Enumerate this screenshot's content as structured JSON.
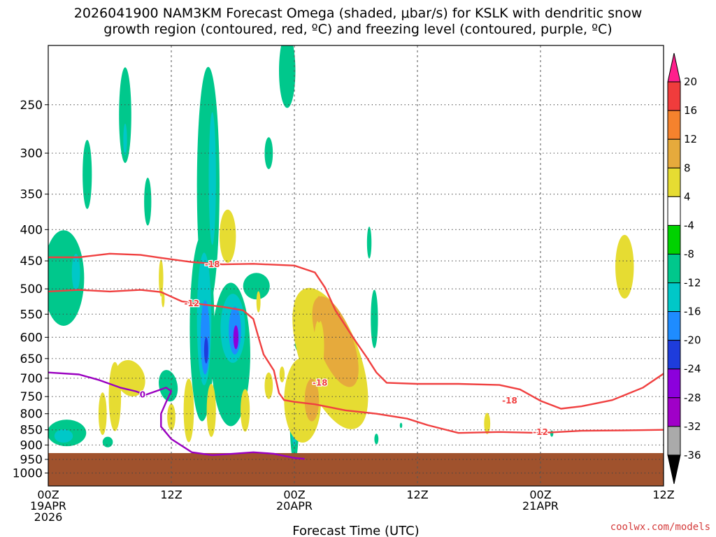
{
  "chart_data": {
    "type": "contour",
    "title_line1": "2026041900 NAM3KM Forecast Omega (shaded, μbar/s) for KSLK with dendritic snow",
    "title_line2": "growth region (contoured, red, ºC) and freezing level (contoured, purple, ºC)",
    "xlabel": "Forecast Time (UTC)",
    "ylabel": "",
    "x_range_hours": [
      0,
      60
    ],
    "y_axis": {
      "scale": "log-pressure",
      "units": "hPa",
      "range": [
        1050,
        200
      ]
    },
    "y_ticks": [
      "250",
      "300",
      "350",
      "400",
      "450",
      "500",
      "550",
      "600",
      "650",
      "700",
      "750",
      "800",
      "850",
      "900",
      "950",
      "1000"
    ],
    "x_ticks": [
      {
        "hour": 0,
        "line1": "00Z",
        "line2": "19APR",
        "line3": "2026"
      },
      {
        "hour": 12,
        "line1": "12Z",
        "line2": "",
        "line3": ""
      },
      {
        "hour": 24,
        "line1": "00Z",
        "line2": "20APR",
        "line3": ""
      },
      {
        "hour": 36,
        "line1": "12Z",
        "line2": "",
        "line3": ""
      },
      {
        "hour": 48,
        "line1": "00Z",
        "line2": "21APR",
        "line3": ""
      },
      {
        "hour": 60,
        "line1": "12Z",
        "line2": "",
        "line3": ""
      }
    ],
    "colorbar": {
      "labels": [
        "20",
        "16",
        "12",
        "8",
        "4",
        "-4",
        "-8",
        "-12",
        "-16",
        "-20",
        "-24",
        "-28",
        "-32",
        "-36"
      ],
      "colors": [
        "#ff1e8c",
        "#f03c3c",
        "#f5822d",
        "#e6aa3c",
        "#e6dc32",
        "#ffffff",
        "#00d200",
        "#00c88c",
        "#00c8c8",
        "#1e8cff",
        "#1e3cdc",
        "#8c00dc",
        "#a000c8",
        "#aaaaaa",
        "#000000"
      ]
    },
    "surface_color": "#a0522d",
    "isotherms": [
      {
        "label": "-18",
        "color": "#f04040",
        "points": [
          [
            0,
            444
          ],
          [
            3,
            444
          ],
          [
            6,
            438
          ],
          [
            9,
            440
          ],
          [
            11,
            445
          ],
          [
            14,
            452
          ],
          [
            17,
            456
          ],
          [
            20,
            455
          ],
          [
            24,
            458
          ],
          [
            26,
            470
          ],
          [
            27,
            498
          ],
          [
            28,
            542
          ],
          [
            29,
            575
          ],
          [
            30,
            610
          ],
          [
            31,
            645
          ],
          [
            32,
            685
          ],
          [
            33,
            712
          ],
          [
            36,
            715
          ],
          [
            40,
            715
          ],
          [
            44,
            718
          ],
          [
            46,
            730
          ],
          [
            48,
            762
          ],
          [
            50,
            785
          ],
          [
            52,
            778
          ],
          [
            55,
            760
          ],
          [
            58,
            725
          ],
          [
            60,
            688
          ]
        ]
      },
      {
        "label": "-12",
        "color": "#f04040",
        "points": [
          [
            0,
            505
          ],
          [
            3,
            502
          ],
          [
            6,
            505
          ],
          [
            9,
            502
          ],
          [
            11,
            506
          ],
          [
            13,
            524
          ],
          [
            15,
            530
          ],
          [
            17,
            535
          ],
          [
            19,
            542
          ],
          [
            20,
            560
          ],
          [
            20.5,
            600
          ],
          [
            21,
            640
          ],
          [
            22,
            680
          ],
          [
            22.5,
            740
          ],
          [
            23,
            760
          ],
          [
            24,
            765
          ],
          [
            26,
            772
          ],
          [
            29,
            790
          ],
          [
            32,
            800
          ],
          [
            35,
            815
          ],
          [
            37,
            835
          ],
          [
            40,
            860
          ],
          [
            44,
            857
          ],
          [
            48,
            860
          ],
          [
            52,
            853
          ],
          [
            56,
            852
          ],
          [
            60,
            850
          ]
        ]
      }
    ],
    "freezing_level": {
      "label": "0",
      "color": "#9a00c0",
      "points": [
        [
          0,
          685
        ],
        [
          3,
          690
        ],
        [
          5,
          705
        ],
        [
          7,
          725
        ],
        [
          8.5,
          735
        ],
        [
          9.5,
          745
        ],
        [
          10.5,
          735
        ],
        [
          11.5,
          725
        ],
        [
          12,
          735
        ],
        [
          11.5,
          765
        ],
        [
          11,
          800
        ],
        [
          11,
          840
        ],
        [
          12,
          880
        ],
        [
          14,
          925
        ],
        [
          16,
          935
        ],
        [
          18,
          930
        ],
        [
          20,
          925
        ],
        [
          22,
          930
        ],
        [
          24,
          945
        ],
        [
          25,
          948
        ]
      ]
    },
    "isotherm_labels": [
      {
        "text": "-18",
        "x": 16,
        "p": 456
      },
      {
        "text": "-12",
        "x": 14,
        "p": 528
      },
      {
        "text": "-18",
        "x": 26.5,
        "p": 712
      },
      {
        "text": "-18",
        "x": 45,
        "p": 762
      },
      {
        "text": "-12",
        "x": 48,
        "p": 857
      },
      {
        "text": "0",
        "x": 9.2,
        "p": 745
      }
    ],
    "omega_shaded": [
      {
        "l": 2,
        "x": 3.8,
        "p": 325,
        "rx": 0.45,
        "ry": 0.13,
        "rot": 0
      },
      {
        "l": 2,
        "x": 7.5,
        "p": 260,
        "rx": 0.6,
        "ry": 0.18,
        "rot": 0
      },
      {
        "l": 2,
        "x": 9.7,
        "p": 360,
        "rx": 0.35,
        "ry": 0.09,
        "rot": 0
      },
      {
        "l": 3,
        "x": 7.5,
        "p": 285,
        "rx": 0.18,
        "ry": 0.06,
        "rot": 0
      },
      {
        "l": 2,
        "x": 1.5,
        "p": 480,
        "rx": 2.0,
        "ry": 0.18,
        "rot": 0
      },
      {
        "l": 3,
        "x": 2.7,
        "p": 470,
        "rx": 0.4,
        "ry": 0.07,
        "rot": 0
      },
      {
        "l": 2,
        "x": 1.8,
        "p": 860,
        "rx": 1.9,
        "ry": 0.05,
        "rot": 0
      },
      {
        "l": 3,
        "x": 1.5,
        "p": 870,
        "rx": 0.9,
        "ry": 0.025,
        "rot": 0
      },
      {
        "l": 2,
        "x": 5.8,
        "p": 890,
        "rx": 0.5,
        "ry": 0.02,
        "rot": 0
      },
      {
        "l": 2,
        "x": 11.7,
        "p": 720,
        "rx": 0.9,
        "ry": 0.06,
        "rot": -10
      },
      {
        "l": 2,
        "x": 15.6,
        "p": 340,
        "rx": 1.1,
        "ry": 0.45,
        "rot": 0
      },
      {
        "l": 3,
        "x": 16.0,
        "p": 330,
        "rx": 0.35,
        "ry": 0.25,
        "rot": 0
      },
      {
        "l": 2,
        "x": 15.0,
        "p": 580,
        "rx": 1.2,
        "ry": 0.35,
        "rot": 0
      },
      {
        "l": 3,
        "x": 15.2,
        "p": 560,
        "rx": 0.7,
        "ry": 0.25,
        "rot": 0
      },
      {
        "l": 4,
        "x": 15.3,
        "p": 600,
        "rx": 0.45,
        "ry": 0.14,
        "rot": 0
      },
      {
        "l": 5,
        "x": 15.4,
        "p": 630,
        "rx": 0.2,
        "ry": 0.05,
        "rot": 0
      },
      {
        "l": 2,
        "x": 17.8,
        "p": 640,
        "rx": 1.9,
        "ry": 0.27,
        "rot": 0
      },
      {
        "l": 3,
        "x": 18.0,
        "p": 580,
        "rx": 1.2,
        "ry": 0.13,
        "rot": 0
      },
      {
        "l": 4,
        "x": 18.2,
        "p": 585,
        "rx": 0.6,
        "ry": 0.09,
        "rot": 0
      },
      {
        "l": 6,
        "x": 18.3,
        "p": 600,
        "rx": 0.25,
        "ry": 0.045,
        "rot": 0
      },
      {
        "l": 2,
        "x": 20.3,
        "p": 495,
        "rx": 1.3,
        "ry": 0.05,
        "rot": 0
      },
      {
        "l": 2,
        "x": 23.3,
        "p": 220,
        "rx": 0.8,
        "ry": 0.14,
        "rot": 0
      },
      {
        "l": 2,
        "x": 21.5,
        "p": 300,
        "rx": 0.4,
        "ry": 0.06,
        "rot": 0
      },
      {
        "l": 2,
        "x": 24.0,
        "p": 810,
        "rx": 0.45,
        "ry": 0.17,
        "rot": 0
      },
      {
        "l": 3,
        "x": 24.0,
        "p": 800,
        "rx": 0.35,
        "ry": 0.12,
        "rot": 0
      },
      {
        "l": 4,
        "x": 24.0,
        "p": 800,
        "rx": 0.25,
        "ry": 0.09,
        "rot": 0
      },
      {
        "l": 6,
        "x": 24.0,
        "p": 800,
        "rx": 0.15,
        "ry": 0.07,
        "rot": 0
      },
      {
        "l": 2,
        "x": 31.8,
        "p": 560,
        "rx": 0.35,
        "ry": 0.11,
        "rot": 0
      },
      {
        "l": 2,
        "x": 31.3,
        "p": 420,
        "rx": 0.22,
        "ry": 0.06,
        "rot": 0
      },
      {
        "l": 2,
        "x": 24.5,
        "p": 615,
        "rx": 0.45,
        "ry": 0.03,
        "rot": 0
      },
      {
        "l": 2,
        "x": 32.0,
        "p": 880,
        "rx": 0.2,
        "ry": 0.02,
        "rot": 0
      },
      {
        "l": 2,
        "x": 34.4,
        "p": 836,
        "rx": 0.12,
        "ry": 0.01,
        "rot": 0
      },
      {
        "l": 2,
        "x": 49.1,
        "p": 862,
        "rx": 0.15,
        "ry": 0.012,
        "rot": 0
      },
      {
        "l": -1,
        "x": 27.5,
        "p": 650,
        "rx": 2.9,
        "ry": 0.28,
        "rot": -20
      },
      {
        "l": -2,
        "x": 28.0,
        "p": 610,
        "rx": 1.7,
        "ry": 0.18,
        "rot": -20
      },
      {
        "l": -1,
        "x": 24.8,
        "p": 760,
        "rx": 1.8,
        "ry": 0.16,
        "rot": 0
      },
      {
        "l": -2,
        "x": 25.7,
        "p": 760,
        "rx": 0.7,
        "ry": 0.08,
        "rot": 0
      },
      {
        "l": -1,
        "x": 26.4,
        "p": 620,
        "rx": 0.5,
        "ry": 0.1,
        "rot": 0
      },
      {
        "l": -2,
        "x": 26.4,
        "p": 540,
        "rx": 0.3,
        "ry": 0.05,
        "rot": 0
      },
      {
        "l": -1,
        "x": 17.5,
        "p": 410,
        "rx": 0.8,
        "ry": 0.1,
        "rot": 0
      },
      {
        "l": -1,
        "x": 11.0,
        "p": 480,
        "rx": 0.22,
        "ry": 0.07,
        "rot": 0
      },
      {
        "l": -1,
        "x": 6.5,
        "p": 750,
        "rx": 0.6,
        "ry": 0.13,
        "rot": 0
      },
      {
        "l": -1,
        "x": 8.0,
        "p": 700,
        "rx": 1.4,
        "ry": 0.07,
        "rot": -20
      },
      {
        "l": -1,
        "x": 5.3,
        "p": 800,
        "rx": 0.4,
        "ry": 0.08,
        "rot": 0
      },
      {
        "l": -1,
        "x": 12.0,
        "p": 810,
        "rx": 0.4,
        "ry": 0.05,
        "rot": 0
      },
      {
        "l": -1,
        "x": 13.7,
        "p": 790,
        "rx": 0.5,
        "ry": 0.12,
        "rot": 0
      },
      {
        "l": -2,
        "x": 15.9,
        "p": 780,
        "rx": 0.3,
        "ry": 0.06,
        "rot": 0
      },
      {
        "l": -1,
        "x": 15.9,
        "p": 790,
        "rx": 0.45,
        "ry": 0.1,
        "rot": 0
      },
      {
        "l": -1,
        "x": 19.2,
        "p": 790,
        "rx": 0.45,
        "ry": 0.08,
        "rot": 0
      },
      {
        "l": -1,
        "x": 21.5,
        "p": 720,
        "rx": 0.4,
        "ry": 0.05,
        "rot": 0
      },
      {
        "l": -1,
        "x": 22.8,
        "p": 690,
        "rx": 0.25,
        "ry": 0.03,
        "rot": 0
      },
      {
        "l": -1,
        "x": 20.5,
        "p": 525,
        "rx": 0.2,
        "ry": 0.04,
        "rot": 0
      },
      {
        "l": -1,
        "x": 11.2,
        "p": 520,
        "rx": 0.15,
        "ry": 0.03,
        "rot": 0
      },
      {
        "l": -1,
        "x": 42.8,
        "p": 830,
        "rx": 0.3,
        "ry": 0.04,
        "rot": 0
      },
      {
        "l": -1,
        "x": 56.2,
        "p": 460,
        "rx": 0.9,
        "ry": 0.12,
        "rot": 0
      }
    ]
  },
  "credit": "coolwx.com/models"
}
